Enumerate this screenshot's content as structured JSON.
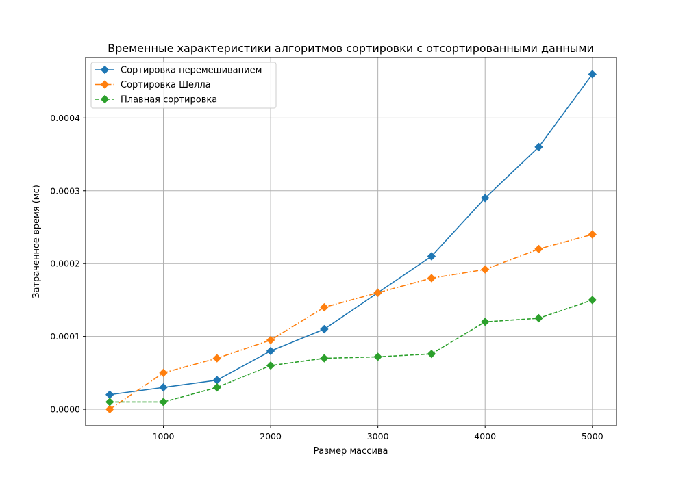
{
  "chart_data": {
    "type": "line",
    "title": "Временные характеристики алгоритмов сортировки с отсортированными данными",
    "xlabel": "Размер массива",
    "ylabel": "Затраченное время (мс)",
    "x": [
      500,
      1000,
      1500,
      2000,
      2500,
      3000,
      3500,
      4000,
      4500,
      5000
    ],
    "xlim": [
      275,
      5225
    ],
    "ylim": [
      -2.25e-05,
      0.000483
    ],
    "xticks": [
      1000,
      2000,
      3000,
      4000,
      5000
    ],
    "xtick_labels": [
      "1000",
      "2000",
      "3000",
      "4000",
      "5000"
    ],
    "yticks": [
      0,
      0.0001,
      0.0002,
      0.0003,
      0.0004
    ],
    "ytick_labels": [
      "0.0000",
      "0.0001",
      "0.0002",
      "0.0003",
      "0.0004"
    ],
    "grid": true,
    "legend_position": "top-left",
    "series": [
      {
        "name": "Сортировка перемешиванием",
        "color": "#1f77b4",
        "linestyle": "solid",
        "marker": "diamond",
        "values": [
          2e-05,
          3e-05,
          4e-05,
          8e-05,
          0.00011,
          0.00016,
          0.00021,
          0.00029,
          0.00036,
          0.00046
        ]
      },
      {
        "name": "Сортировка Шелла",
        "color": "#ff7f0e",
        "linestyle": "dashdot",
        "marker": "diamond",
        "values": [
          0.0,
          5e-05,
          7e-05,
          9.5e-05,
          0.00014,
          0.00016,
          0.00018,
          0.000192,
          0.00022,
          0.00024
        ]
      },
      {
        "name": "Плавная сортировка",
        "color": "#2ca02c",
        "linestyle": "dashed",
        "marker": "diamond",
        "values": [
          1e-05,
          1e-05,
          3e-05,
          6e-05,
          7e-05,
          7.2e-05,
          7.6e-05,
          0.00012,
          0.000125,
          0.00015
        ]
      }
    ]
  }
}
